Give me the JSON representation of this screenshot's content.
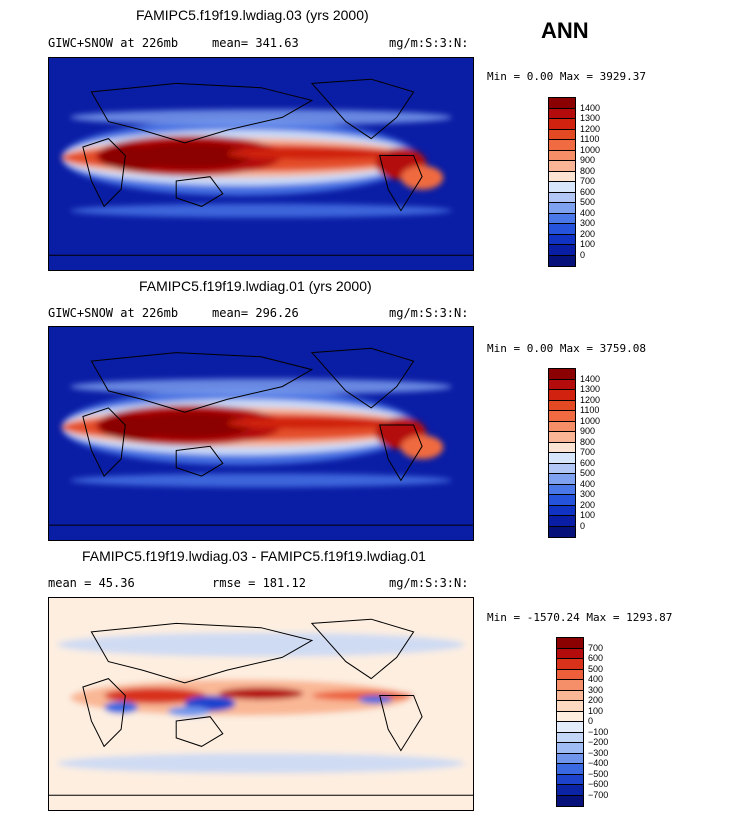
{
  "season": "ANN",
  "panels": [
    {
      "title": "FAMIPC5.f19f19.lwdiag.03 (yrs 2000)",
      "left_text": "GIWC+SNOW at 226mb",
      "mean_text": "mean= 341.63",
      "units": "mg/m:S:3:N:",
      "minmax": "Min =   0.00 Max = 3929.37",
      "kind": "field",
      "labels": [
        "1400",
        "1300",
        "1200",
        "1100",
        "1000",
        "900",
        "800",
        "700",
        "600",
        "500",
        "400",
        "300",
        "200",
        "100",
        "0"
      ]
    },
    {
      "title": "FAMIPC5.f19f19.lwdiag.01 (yrs 2000)",
      "left_text": "GIWC+SNOW at 226mb",
      "mean_text": "mean= 296.26",
      "units": "mg/m:S:3:N:",
      "minmax": "Min =   0.00 Max = 3759.08",
      "kind": "field",
      "labels": [
        "1400",
        "1300",
        "1200",
        "1100",
        "1000",
        "900",
        "800",
        "700",
        "600",
        "500",
        "400",
        "300",
        "200",
        "100",
        "0"
      ]
    },
    {
      "title": "FAMIPC5.f19f19.lwdiag.03 - FAMIPC5.f19f19.lwdiag.01",
      "left_text": "mean =  45.36",
      "mean_text": "rmse = 181.12",
      "units": "mg/m:S:3:N:",
      "minmax": "Min = -1570.24 Max = 1293.87",
      "kind": "diff",
      "labels": [
        "700",
        "600",
        "500",
        "400",
        "300",
        "200",
        "100",
        "0",
        "−100",
        "−200",
        "−300",
        "−400",
        "−500",
        "−600",
        "−700"
      ]
    }
  ],
  "colors": {
    "field": [
      "#8b0000",
      "#b40c0c",
      "#d0220f",
      "#e34a24",
      "#f06b41",
      "#f68f68",
      "#fab597",
      "#fde3d1",
      "#d8e6fb",
      "#b2c7f6",
      "#7fa2f0",
      "#4b78e8",
      "#2653db",
      "#1133c4",
      "#0a1da5",
      "#06127a"
    ],
    "diff": [
      "#8b0000",
      "#b40c0c",
      "#d8321a",
      "#ec5f3a",
      "#f48f69",
      "#f9b795",
      "#fdd9c2",
      "#fdeee0",
      "#e2ecfb",
      "#c3d6f8",
      "#9fbcf4",
      "#6f95ec",
      "#3b69e1",
      "#1d43cd",
      "#0b24a6",
      "#06127a"
    ]
  }
}
